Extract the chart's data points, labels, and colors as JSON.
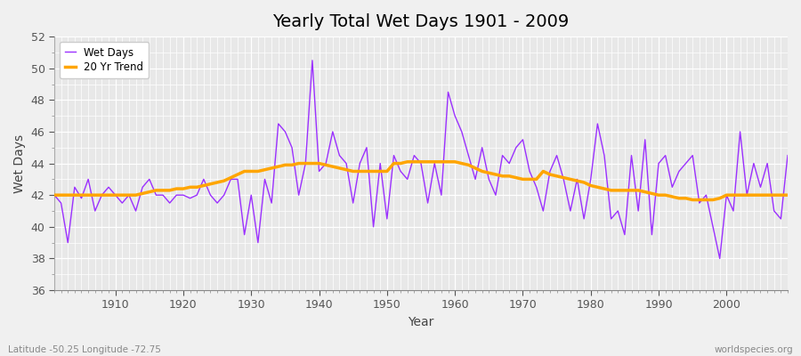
{
  "title": "Yearly Total Wet Days 1901 - 2009",
  "xlabel": "Year",
  "ylabel": "Wet Days",
  "footnote_left": "Latitude -50.25 Longitude -72.75",
  "footnote_right": "worldspecies.org",
  "ylim": [
    36,
    52
  ],
  "xlim": [
    1901,
    2009
  ],
  "wet_days_color": "#9B30FF",
  "trend_color": "#FFA500",
  "bg_color": "#F0F0F0",
  "plot_bg_color": "#E8E8E8",
  "grid_color": "#FFFFFF",
  "legend_labels": [
    "Wet Days",
    "20 Yr Trend"
  ],
  "years": [
    1901,
    1902,
    1903,
    1904,
    1905,
    1906,
    1907,
    1908,
    1909,
    1910,
    1911,
    1912,
    1913,
    1914,
    1915,
    1916,
    1917,
    1918,
    1919,
    1920,
    1921,
    1922,
    1923,
    1924,
    1925,
    1926,
    1927,
    1928,
    1929,
    1930,
    1931,
    1932,
    1933,
    1934,
    1935,
    1936,
    1937,
    1938,
    1939,
    1940,
    1941,
    1942,
    1943,
    1944,
    1945,
    1946,
    1947,
    1948,
    1949,
    1950,
    1951,
    1952,
    1953,
    1954,
    1955,
    1956,
    1957,
    1958,
    1959,
    1960,
    1961,
    1962,
    1963,
    1964,
    1965,
    1966,
    1967,
    1968,
    1969,
    1970,
    1971,
    1972,
    1973,
    1974,
    1975,
    1976,
    1977,
    1978,
    1979,
    1980,
    1981,
    1982,
    1983,
    1984,
    1985,
    1986,
    1987,
    1988,
    1989,
    1990,
    1991,
    1992,
    1993,
    1994,
    1995,
    1996,
    1997,
    1998,
    1999,
    2000,
    2001,
    2002,
    2003,
    2004,
    2005,
    2006,
    2007,
    2008,
    2009
  ],
  "wet_days": [
    42.0,
    41.5,
    39.0,
    42.5,
    41.8,
    43.0,
    41.0,
    42.0,
    42.5,
    42.0,
    41.5,
    42.0,
    41.0,
    42.5,
    43.0,
    42.0,
    42.0,
    41.5,
    42.0,
    42.0,
    41.8,
    42.0,
    43.0,
    42.0,
    41.5,
    42.0,
    43.0,
    43.0,
    39.5,
    42.0,
    39.0,
    43.0,
    41.5,
    46.5,
    46.0,
    45.0,
    42.0,
    44.0,
    50.5,
    43.5,
    44.0,
    46.0,
    44.5,
    44.0,
    41.5,
    44.0,
    45.0,
    40.0,
    44.0,
    40.5,
    44.5,
    43.5,
    43.0,
    44.5,
    44.0,
    41.5,
    44.0,
    42.0,
    48.5,
    47.0,
    46.0,
    44.5,
    43.0,
    45.0,
    43.0,
    42.0,
    44.5,
    44.0,
    45.0,
    45.5,
    43.5,
    42.5,
    41.0,
    43.5,
    44.5,
    43.0,
    41.0,
    43.0,
    40.5,
    43.0,
    46.5,
    44.5,
    40.5,
    41.0,
    39.5,
    44.5,
    41.0,
    45.5,
    39.5,
    44.0,
    44.5,
    42.5,
    43.5,
    44.0,
    44.5,
    41.5,
    42.0,
    40.0,
    38.0,
    42.0,
    41.0,
    46.0,
    42.0,
    44.0,
    42.5,
    44.0,
    41.0,
    40.5,
    44.5
  ],
  "trend": [
    42.0,
    42.0,
    42.0,
    42.0,
    42.0,
    42.0,
    42.0,
    42.0,
    42.0,
    42.0,
    42.0,
    42.0,
    42.0,
    42.1,
    42.2,
    42.3,
    42.3,
    42.3,
    42.4,
    42.4,
    42.5,
    42.5,
    42.6,
    42.7,
    42.8,
    42.9,
    43.1,
    43.3,
    43.5,
    43.5,
    43.5,
    43.6,
    43.7,
    43.8,
    43.9,
    43.9,
    44.0,
    44.0,
    44.0,
    44.0,
    43.9,
    43.8,
    43.7,
    43.6,
    43.5,
    43.5,
    43.5,
    43.5,
    43.5,
    43.5,
    44.0,
    44.0,
    44.1,
    44.1,
    44.1,
    44.1,
    44.1,
    44.1,
    44.1,
    44.1,
    44.0,
    43.9,
    43.7,
    43.5,
    43.4,
    43.3,
    43.2,
    43.2,
    43.1,
    43.0,
    43.0,
    43.0,
    43.5,
    43.3,
    43.2,
    43.1,
    43.0,
    42.9,
    42.8,
    42.6,
    42.5,
    42.4,
    42.3,
    42.3,
    42.3,
    42.3,
    42.3,
    42.2,
    42.1,
    42.0,
    42.0,
    41.9,
    41.8,
    41.8,
    41.7,
    41.7,
    41.7,
    41.7,
    41.8,
    42.0,
    42.0,
    42.0,
    42.0,
    42.0,
    42.0,
    42.0,
    42.0,
    42.0,
    42.0
  ]
}
